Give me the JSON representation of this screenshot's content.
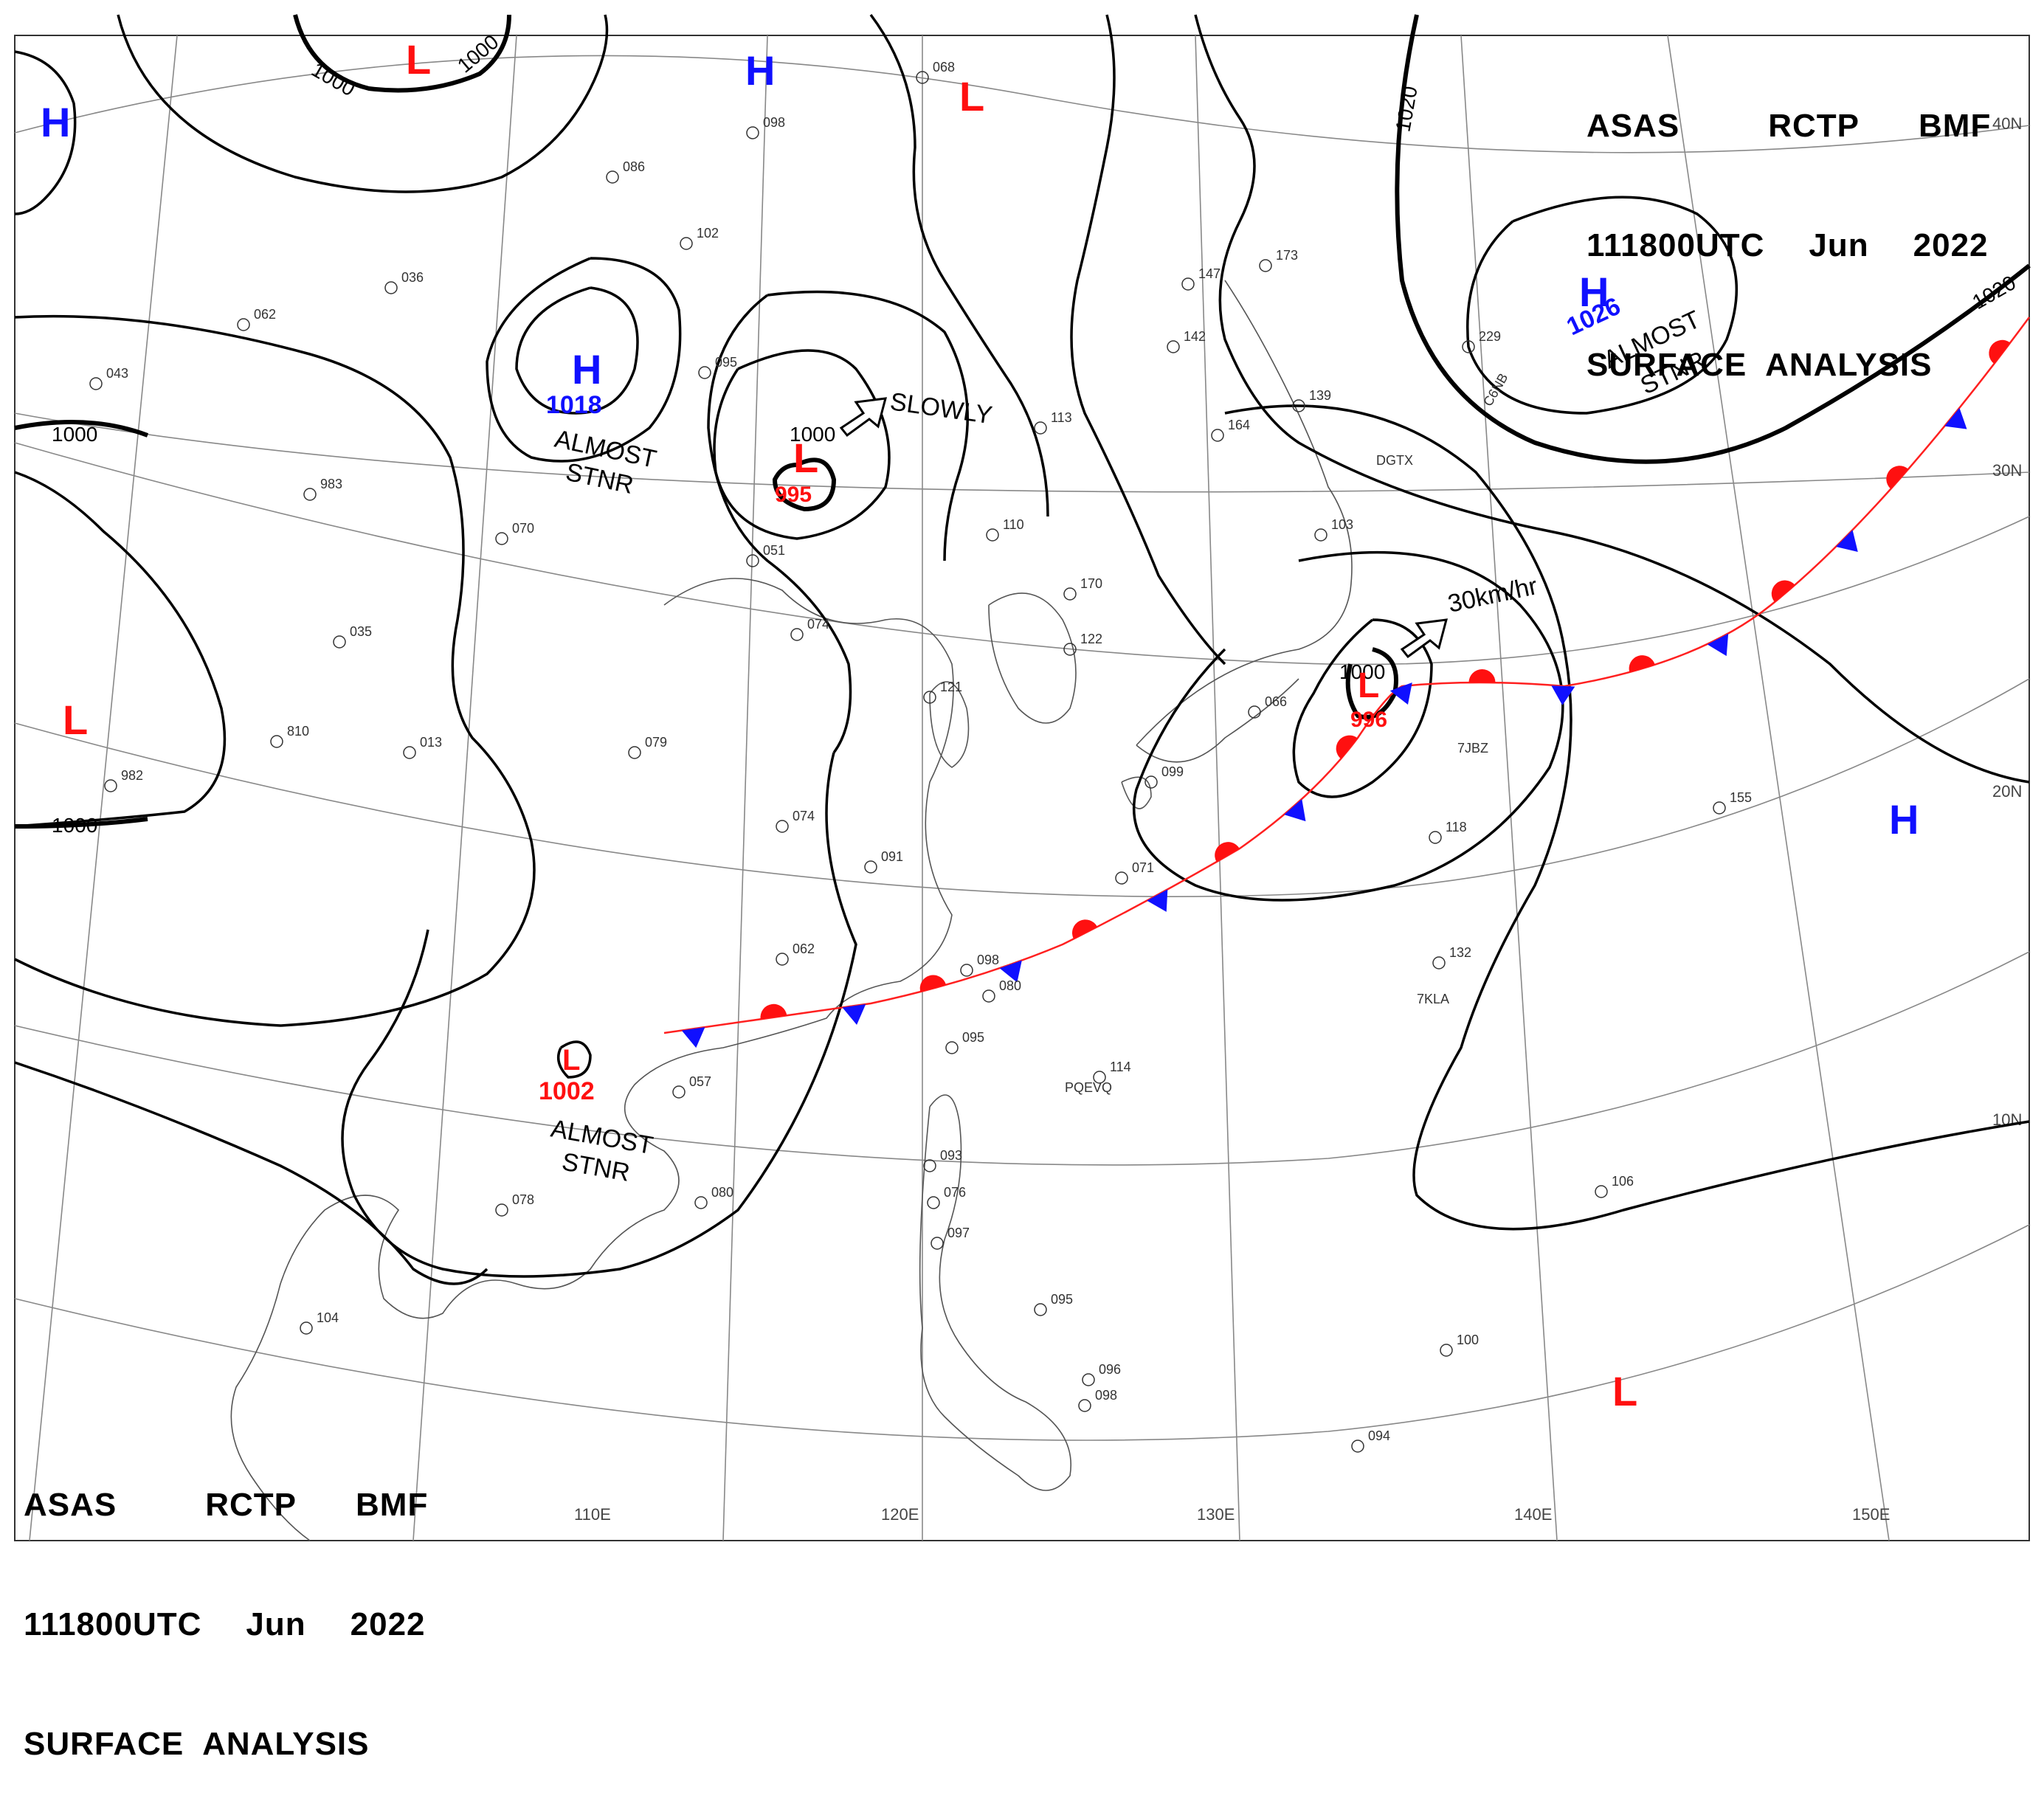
{
  "header": {
    "line1": [
      "ASAS",
      "RCTP",
      "BMF"
    ],
    "line2": [
      "111800UTC",
      "Jun",
      "2022"
    ],
    "line3": "SURFACE  ANALYSIS"
  },
  "colors": {
    "high": "#1010ff",
    "low": "#ff1010",
    "isobar": "#000000",
    "grid": "#888888"
  },
  "lon_labels": [
    "110E",
    "120E",
    "130E",
    "140E",
    "150E"
  ],
  "lat_labels": [
    "40N",
    "30N",
    "20N",
    "10N"
  ],
  "isobar_labels": [
    "1000",
    "1000",
    "1000",
    "1000",
    "1000",
    "1020",
    "1020",
    "1000"
  ],
  "systems": [
    {
      "type": "H",
      "pressure": ""
    },
    {
      "type": "H",
      "pressure": ""
    },
    {
      "type": "H",
      "pressure": "1018"
    },
    {
      "type": "H",
      "pressure": "1026"
    },
    {
      "type": "H",
      "pressure": ""
    },
    {
      "type": "L",
      "pressure": ""
    },
    {
      "type": "L",
      "pressure": ""
    },
    {
      "type": "L",
      "pressure": "995"
    },
    {
      "type": "L",
      "pressure": ""
    },
    {
      "type": "L",
      "pressure": "1002"
    },
    {
      "type": "L",
      "pressure": "996"
    },
    {
      "type": "L",
      "pressure": ""
    }
  ],
  "notes": [
    "ALMOST",
    "STNR",
    "ALMOST",
    "STNR",
    "ALMOST",
    "STNR",
    "SLOWLY",
    "30km/hr"
  ],
  "stations": [
    {
      "id": "DGTX"
    },
    {
      "id": "C6NB"
    },
    {
      "id": "7JBZ"
    },
    {
      "id": "7KLA"
    },
    {
      "id": "PQEVQ"
    }
  ],
  "station_values": [
    "098",
    "068",
    "086",
    "102",
    "036",
    "062",
    "043",
    "983",
    "070",
    "035",
    "074",
    "051",
    "095",
    "110",
    "170",
    "103",
    "139",
    "164",
    "142",
    "147",
    "173",
    "229",
    "113",
    "122",
    "066",
    "079",
    "074",
    "091",
    "071",
    "098",
    "080",
    "095",
    "114",
    "118",
    "155",
    "132",
    "106",
    "093",
    "076",
    "097",
    "095",
    "096",
    "098",
    "100",
    "094",
    "104",
    "078",
    "057",
    "080",
    "013",
    "810",
    "982",
    "062",
    "099",
    "121"
  ]
}
